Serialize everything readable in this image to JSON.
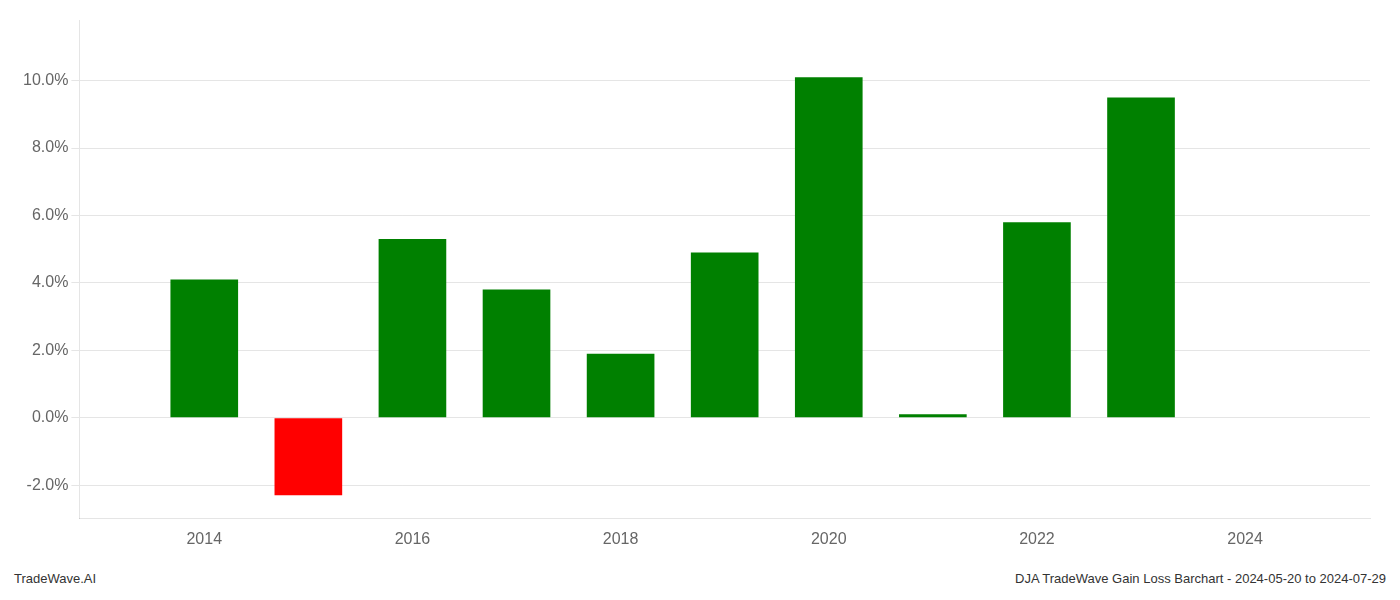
{
  "chart_data": {
    "type": "bar",
    "x": [
      2014,
      2015,
      2016,
      2017,
      2018,
      2019,
      2020,
      2021,
      2022,
      2023
    ],
    "values": [
      0.041,
      -0.023,
      0.053,
      0.038,
      0.019,
      0.049,
      0.101,
      0.001,
      0.058,
      0.095
    ],
    "colors": [
      "#008000",
      "#ff0000",
      "#008000",
      "#008000",
      "#008000",
      "#008000",
      "#008000",
      "#008000",
      "#008000",
      "#008000"
    ],
    "xlim": [
      2012.8,
      2025.2
    ],
    "xticks": [
      2014,
      2016,
      2018,
      2020,
      2022,
      2024
    ],
    "ylim": [
      -0.03,
      0.118
    ],
    "yticks": [
      {
        "value": -0.02,
        "label": "-2.0%"
      },
      {
        "value": 0,
        "label": "0.0%"
      },
      {
        "value": 0.02,
        "label": "2.0%"
      },
      {
        "value": 0.04,
        "label": "4.0%"
      },
      {
        "value": 0.06,
        "label": "6.0%"
      },
      {
        "value": 0.08,
        "label": "8.0%"
      },
      {
        "value": 0.1,
        "label": "10.0%"
      }
    ],
    "grid": true,
    "annotations": [
      "TradeWave.AI",
      "DJA TradeWave Gain Loss Barchart - 2024-05-20 to 2024-07-29"
    ]
  }
}
